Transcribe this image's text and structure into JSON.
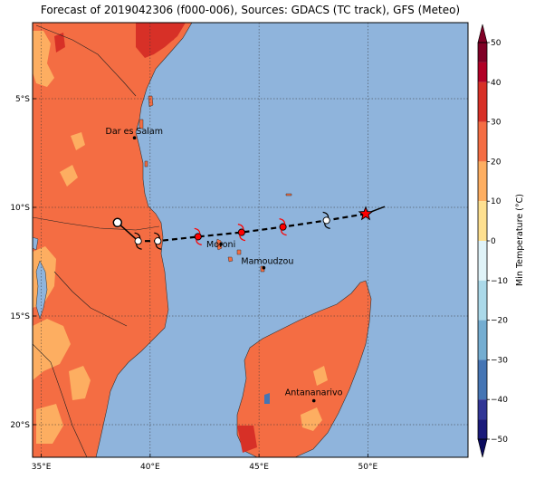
{
  "title": "Forecast of 2019042306 (f000-006), Sources: GDACS (TC track), GFS (Meteo)",
  "map": {
    "lon_range": [
      34.6,
      54.6
    ],
    "lat_range": [
      -21.5,
      -1.5
    ],
    "xticks": [
      {
        "value": 35,
        "label": "35°E"
      },
      {
        "value": 40,
        "label": "40°E"
      },
      {
        "value": 45,
        "label": "45°E"
      },
      {
        "value": 50,
        "label": "50°E"
      }
    ],
    "yticks": [
      {
        "value": -5,
        "label": "5°S"
      },
      {
        "value": -10,
        "label": "10°S"
      },
      {
        "value": -15,
        "label": "15°S"
      },
      {
        "value": -20,
        "label": "20°S"
      }
    ],
    "grid": "dotted",
    "ocean_color": "#8fb4dc"
  },
  "cities": [
    {
      "name": "Dar es Salam",
      "lon": 39.28,
      "lat": -6.8
    },
    {
      "name": "Moroni",
      "lon": 43.25,
      "lat": -11.7
    },
    {
      "name": "Mamoudzou",
      "lon": 45.22,
      "lat": -12.78
    },
    {
      "name": "Antananarivo",
      "lon": 47.52,
      "lat": -18.9
    }
  ],
  "track": {
    "line_style": "dashed",
    "points": [
      {
        "lon": 49.9,
        "lat": -10.3,
        "symbol": "star",
        "color": "#ff0000"
      },
      {
        "lon": 48.1,
        "lat": -10.6,
        "symbol": "cyclone",
        "color": "#ffffff"
      },
      {
        "lon": 46.1,
        "lat": -10.9,
        "symbol": "cyclone",
        "color": "#ff0000"
      },
      {
        "lon": 44.2,
        "lat": -11.15,
        "symbol": "cyclone",
        "color": "#ff0000"
      },
      {
        "lon": 42.2,
        "lat": -11.35,
        "symbol": "cyclone",
        "color": "#ff0000"
      },
      {
        "lon": 40.35,
        "lat": -11.55,
        "symbol": "cyclone",
        "color": "#ffffff"
      },
      {
        "lon": 39.45,
        "lat": -11.55,
        "symbol": "cyclone",
        "color": "#ffffff"
      },
      {
        "lon": 38.5,
        "lat": -10.7,
        "symbol": "circle",
        "color": "#ffffff"
      }
    ]
  },
  "colorbar": {
    "label": "Min Temperature (°C)",
    "ticks": [
      50,
      40,
      30,
      20,
      10,
      0,
      -10,
      -20,
      -30,
      -40,
      -50
    ],
    "levels": [
      {
        "from": 45,
        "to": 50,
        "color": "#800026"
      },
      {
        "from": 40,
        "to": 45,
        "color": "#b10026"
      },
      {
        "from": 30,
        "to": 40,
        "color": "#d73027"
      },
      {
        "from": 20,
        "to": 30,
        "color": "#f46d43"
      },
      {
        "from": 10,
        "to": 20,
        "color": "#fdae61"
      },
      {
        "from": 0,
        "to": 10,
        "color": "#fee090"
      },
      {
        "from": -10,
        "to": 0,
        "color": "#e0f3f8"
      },
      {
        "from": -20,
        "to": -10,
        "color": "#abd9e9"
      },
      {
        "from": -30,
        "to": -20,
        "color": "#74add1"
      },
      {
        "from": -40,
        "to": -30,
        "color": "#4575b4"
      },
      {
        "from": -45,
        "to": -40,
        "color": "#313695"
      },
      {
        "from": -50,
        "to": -45,
        "color": "#1a1a7a"
      }
    ]
  }
}
